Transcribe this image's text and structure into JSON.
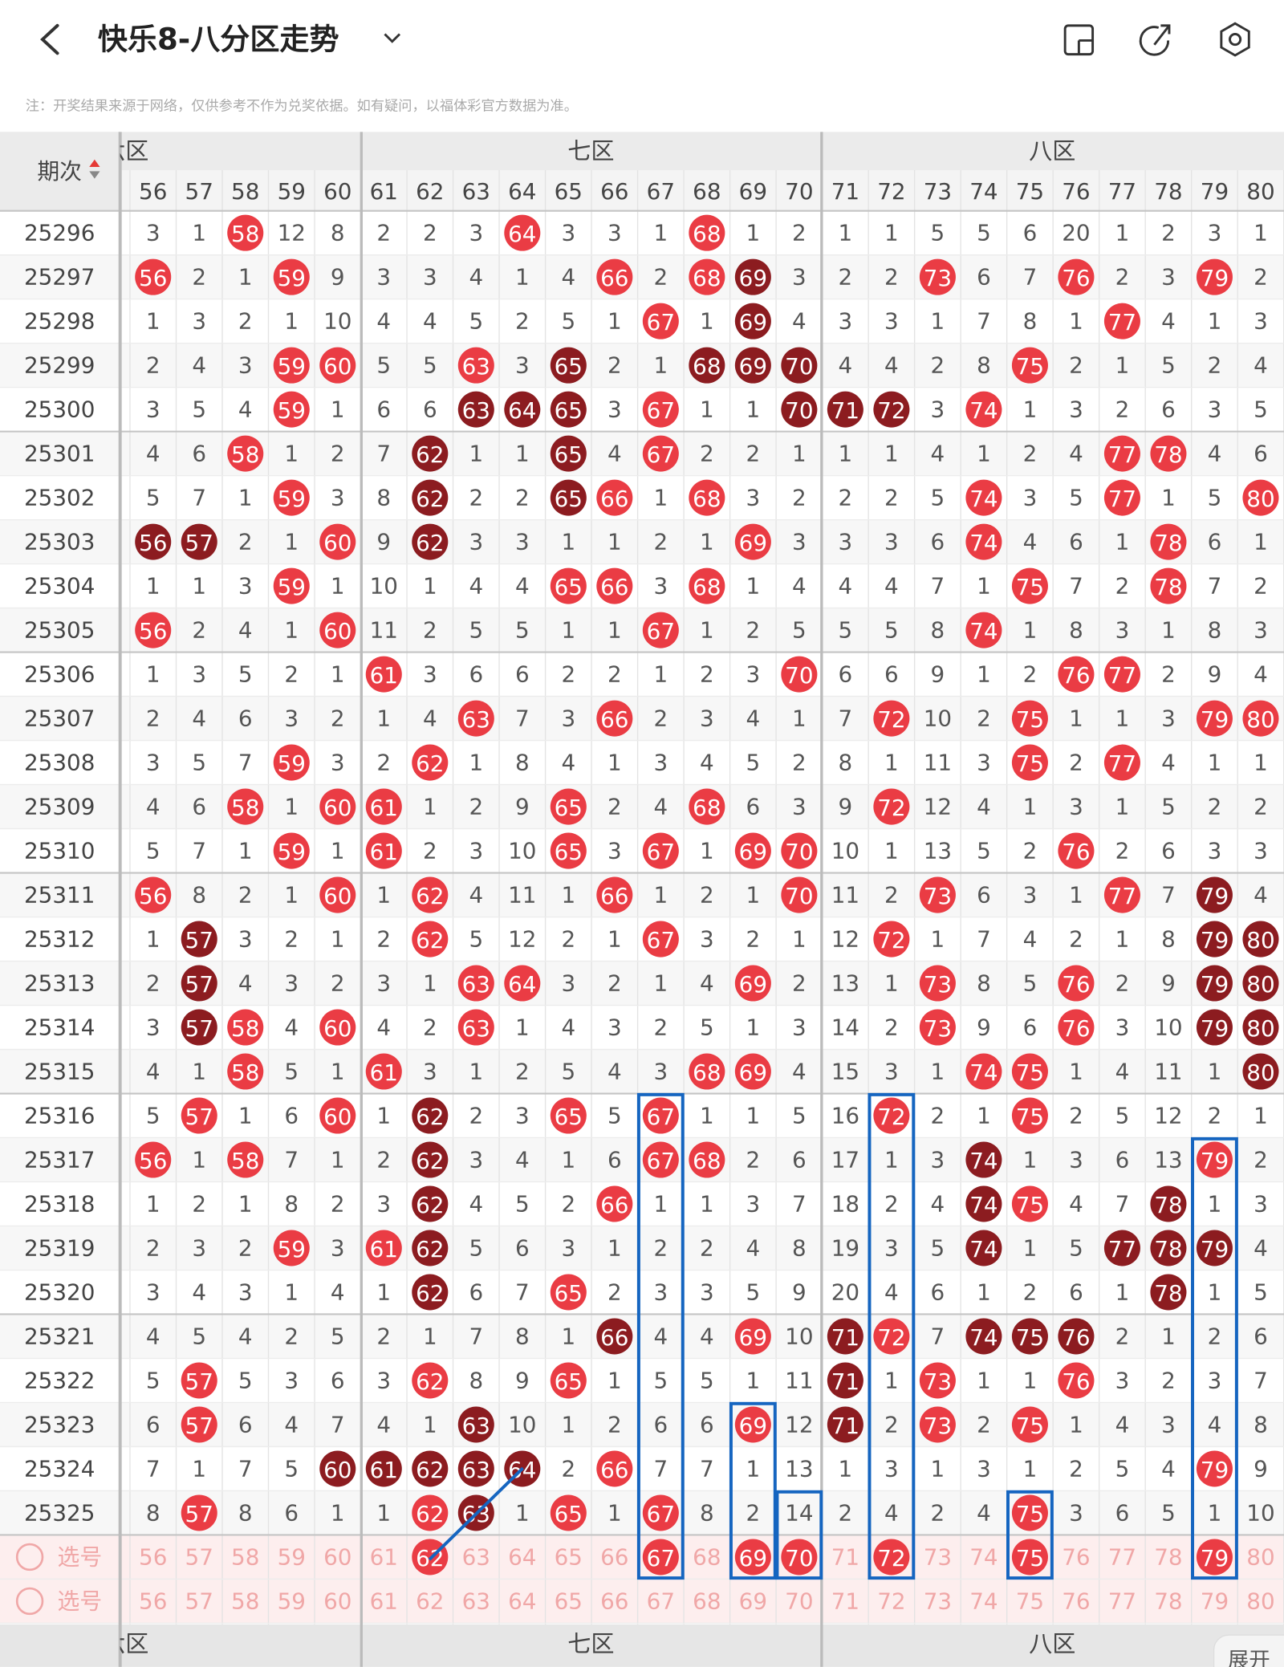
{
  "header": {
    "title": "快乐8-八分区走势"
  },
  "note": "注：开奖结果来源于网络，仅供参考不作为兑奖依据。如有疑问，以福体彩官方数据为准。",
  "table": {
    "period_header": "期次",
    "zones": [
      {
        "label": "六区"
      },
      {
        "label": "七区"
      },
      {
        "label": "八区"
      }
    ],
    "columns": [
      56,
      57,
      58,
      59,
      60,
      61,
      62,
      63,
      64,
      65,
      66,
      67,
      68,
      69,
      70,
      71,
      72,
      73,
      74,
      75,
      76,
      77,
      78,
      79,
      80
    ],
    "rows": [
      {
        "period": "25296",
        "cells": [
          3,
          1,
          58,
          12,
          8,
          2,
          2,
          3,
          64,
          3,
          3,
          1,
          68,
          1,
          2,
          1,
          1,
          5,
          5,
          6,
          20,
          1,
          2,
          3,
          1
        ]
      },
      {
        "period": "25297",
        "cells": [
          56,
          2,
          1,
          59,
          9,
          3,
          3,
          4,
          1,
          4,
          66,
          2,
          68,
          69,
          3,
          2,
          2,
          73,
          6,
          7,
          76,
          2,
          3,
          79,
          2
        ],
        "dark": [
          69
        ]
      },
      {
        "period": "25298",
        "cells": [
          1,
          3,
          2,
          1,
          10,
          4,
          4,
          5,
          2,
          5,
          1,
          67,
          1,
          69,
          4,
          3,
          3,
          1,
          7,
          8,
          1,
          77,
          4,
          1,
          3
        ],
        "dark": [
          69
        ]
      },
      {
        "period": "25299",
        "cells": [
          2,
          4,
          3,
          59,
          60,
          5,
          5,
          63,
          3,
          65,
          2,
          1,
          68,
          69,
          70,
          4,
          4,
          2,
          8,
          75,
          2,
          1,
          5,
          2,
          4
        ],
        "dark": [
          65,
          68,
          69,
          70
        ]
      },
      {
        "period": "25300",
        "cells": [
          3,
          5,
          4,
          59,
          1,
          6,
          6,
          63,
          64,
          65,
          3,
          67,
          1,
          1,
          70,
          71,
          72,
          3,
          74,
          1,
          3,
          2,
          6,
          3,
          5
        ],
        "dark": [
          63,
          64,
          65,
          70,
          71,
          72
        ]
      },
      {
        "period": "25301",
        "cells": [
          4,
          6,
          58,
          1,
          2,
          7,
          62,
          1,
          1,
          65,
          4,
          67,
          2,
          2,
          1,
          1,
          1,
          4,
          1,
          2,
          4,
          77,
          78,
          4,
          6
        ],
        "dark": [
          62,
          65
        ]
      },
      {
        "period": "25302",
        "cells": [
          5,
          7,
          1,
          59,
          3,
          8,
          62,
          2,
          2,
          65,
          66,
          1,
          68,
          3,
          2,
          2,
          2,
          5,
          74,
          3,
          5,
          77,
          1,
          5,
          80
        ],
        "dark": [
          62,
          65
        ]
      },
      {
        "period": "25303",
        "cells": [
          56,
          57,
          2,
          1,
          60,
          9,
          62,
          3,
          3,
          1,
          1,
          2,
          1,
          69,
          3,
          3,
          3,
          6,
          74,
          4,
          6,
          1,
          78,
          6,
          1
        ],
        "dark": [
          56,
          57,
          62
        ]
      },
      {
        "period": "25304",
        "cells": [
          1,
          1,
          3,
          59,
          1,
          10,
          1,
          4,
          4,
          65,
          66,
          3,
          68,
          1,
          4,
          4,
          4,
          7,
          1,
          75,
          7,
          2,
          78,
          7,
          2
        ]
      },
      {
        "period": "25305",
        "cells": [
          56,
          2,
          4,
          1,
          60,
          11,
          2,
          5,
          5,
          1,
          1,
          67,
          1,
          2,
          5,
          5,
          5,
          8,
          74,
          1,
          8,
          3,
          1,
          8,
          3
        ]
      },
      {
        "period": "25306",
        "cells": [
          1,
          3,
          5,
          2,
          1,
          61,
          3,
          6,
          6,
          2,
          2,
          1,
          2,
          3,
          70,
          6,
          6,
          9,
          1,
          2,
          76,
          77,
          2,
          9,
          4
        ]
      },
      {
        "period": "25307",
        "cells": [
          2,
          4,
          6,
          3,
          2,
          1,
          4,
          63,
          7,
          3,
          66,
          2,
          3,
          4,
          1,
          7,
          72,
          10,
          2,
          75,
          1,
          1,
          3,
          79,
          80
        ]
      },
      {
        "period": "25308",
        "cells": [
          3,
          5,
          7,
          59,
          3,
          2,
          62,
          1,
          8,
          4,
          1,
          3,
          4,
          5,
          2,
          8,
          1,
          11,
          3,
          75,
          2,
          77,
          4,
          1,
          1
        ]
      },
      {
        "period": "25309",
        "cells": [
          4,
          6,
          58,
          1,
          60,
          61,
          1,
          2,
          9,
          65,
          2,
          4,
          68,
          6,
          3,
          9,
          72,
          12,
          4,
          1,
          3,
          1,
          5,
          2,
          2
        ]
      },
      {
        "period": "25310",
        "cells": [
          5,
          7,
          1,
          59,
          1,
          61,
          2,
          3,
          10,
          65,
          3,
          67,
          1,
          69,
          70,
          10,
          1,
          13,
          5,
          2,
          76,
          2,
          6,
          3,
          3
        ]
      },
      {
        "period": "25311",
        "cells": [
          56,
          8,
          2,
          1,
          60,
          1,
          62,
          4,
          11,
          1,
          66,
          1,
          2,
          1,
          70,
          11,
          2,
          73,
          6,
          3,
          1,
          77,
          7,
          79,
          4
        ],
        "dark": [
          79
        ]
      },
      {
        "period": "25312",
        "cells": [
          1,
          57,
          3,
          2,
          1,
          2,
          62,
          5,
          12,
          2,
          1,
          67,
          3,
          2,
          1,
          12,
          72,
          1,
          7,
          4,
          2,
          1,
          8,
          79,
          80
        ],
        "dark": [
          57,
          79,
          80
        ]
      },
      {
        "period": "25313",
        "cells": [
          2,
          57,
          4,
          3,
          2,
          3,
          1,
          63,
          64,
          3,
          2,
          1,
          4,
          69,
          2,
          13,
          1,
          73,
          8,
          5,
          76,
          2,
          9,
          79,
          80
        ],
        "dark": [
          57,
          79,
          80
        ]
      },
      {
        "period": "25314",
        "cells": [
          3,
          57,
          58,
          4,
          60,
          4,
          2,
          63,
          1,
          4,
          3,
          2,
          5,
          1,
          3,
          14,
          2,
          73,
          9,
          6,
          76,
          3,
          10,
          79,
          80
        ],
        "dark": [
          57,
          79,
          80
        ]
      },
      {
        "period": "25315",
        "cells": [
          4,
          1,
          58,
          5,
          1,
          61,
          3,
          1,
          2,
          5,
          4,
          3,
          68,
          69,
          4,
          15,
          3,
          1,
          74,
          75,
          1,
          4,
          11,
          1,
          80
        ],
        "dark": [
          80
        ]
      },
      {
        "period": "25316",
        "cells": [
          5,
          57,
          1,
          6,
          60,
          1,
          62,
          2,
          3,
          65,
          5,
          67,
          1,
          1,
          5,
          16,
          72,
          2,
          1,
          75,
          2,
          5,
          12,
          2,
          1
        ],
        "dark": [
          62
        ]
      },
      {
        "period": "25317",
        "cells": [
          56,
          1,
          58,
          7,
          1,
          2,
          62,
          3,
          4,
          1,
          6,
          67,
          68,
          2,
          6,
          17,
          1,
          3,
          74,
          1,
          3,
          6,
          13,
          79,
          2
        ],
        "dark": [
          62,
          74
        ]
      },
      {
        "period": "25318",
        "cells": [
          1,
          2,
          1,
          8,
          2,
          3,
          62,
          4,
          5,
          2,
          66,
          1,
          1,
          3,
          7,
          18,
          2,
          4,
          74,
          75,
          4,
          7,
          78,
          1,
          3
        ],
        "dark": [
          62,
          74,
          78
        ]
      },
      {
        "period": "25319",
        "cells": [
          2,
          3,
          2,
          59,
          3,
          61,
          62,
          5,
          6,
          3,
          1,
          2,
          2,
          4,
          8,
          19,
          3,
          5,
          74,
          1,
          5,
          77,
          78,
          79,
          4
        ],
        "dark": [
          62,
          74,
          77,
          78,
          79
        ]
      },
      {
        "period": "25320",
        "cells": [
          3,
          4,
          3,
          1,
          4,
          1,
          62,
          6,
          7,
          65,
          2,
          3,
          3,
          5,
          9,
          20,
          4,
          6,
          1,
          2,
          6,
          1,
          78,
          1,
          5
        ],
        "dark": [
          62,
          78
        ]
      },
      {
        "period": "25321",
        "cells": [
          4,
          5,
          4,
          2,
          5,
          2,
          1,
          7,
          8,
          1,
          66,
          4,
          4,
          69,
          10,
          71,
          72,
          7,
          74,
          75,
          76,
          2,
          1,
          2,
          6
        ],
        "dark": [
          66,
          71,
          74,
          75,
          76
        ]
      },
      {
        "period": "25322",
        "cells": [
          5,
          57,
          5,
          3,
          6,
          3,
          62,
          8,
          9,
          65,
          1,
          5,
          5,
          1,
          11,
          71,
          1,
          73,
          1,
          1,
          76,
          3,
          2,
          3,
          7
        ],
        "dark": [
          71
        ]
      },
      {
        "period": "25323",
        "cells": [
          6,
          57,
          6,
          4,
          7,
          4,
          1,
          63,
          10,
          1,
          2,
          6,
          6,
          69,
          12,
          71,
          2,
          73,
          2,
          75,
          1,
          4,
          3,
          4,
          8
        ],
        "dark": [
          63,
          71
        ]
      },
      {
        "period": "25324",
        "cells": [
          7,
          1,
          7,
          5,
          60,
          61,
          62,
          63,
          64,
          2,
          66,
          7,
          7,
          1,
          13,
          1,
          3,
          1,
          3,
          1,
          2,
          5,
          4,
          79,
          9
        ],
        "dark": [
          60,
          61,
          62,
          63,
          64
        ]
      },
      {
        "period": "25325",
        "cells": [
          8,
          57,
          8,
          6,
          1,
          1,
          62,
          63,
          1,
          65,
          1,
          67,
          8,
          2,
          14,
          2,
          4,
          2,
          4,
          75,
          3,
          6,
          5,
          1,
          10
        ],
        "dark": [
          63
        ]
      }
    ],
    "select_rows": [
      {
        "label": "选号",
        "picked": [
          62,
          67,
          69,
          70,
          72,
          75,
          79
        ]
      },
      {
        "label": "选号"
      }
    ],
    "expand_button": "展开"
  }
}
